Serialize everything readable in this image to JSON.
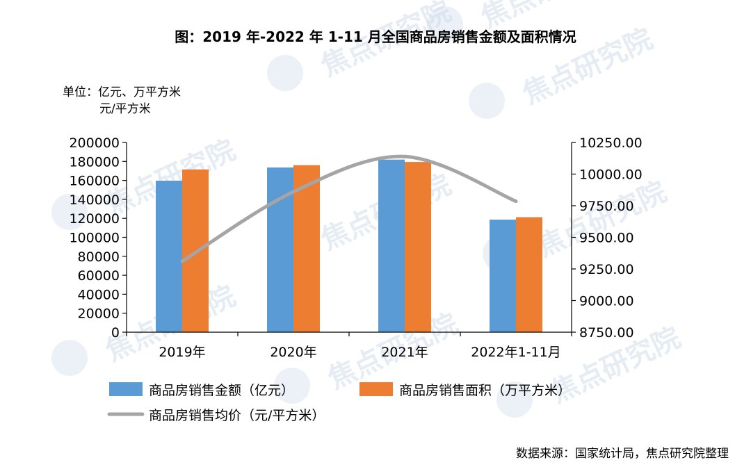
{
  "chart_data": {
    "type": "bar+line",
    "title": "图：2019 年-2022 年 1-11 月全国商品房销售金额及面积情况",
    "unit_lines": [
      "单位：亿元、万平方米",
      "元/平方米"
    ],
    "categories": [
      "2019年",
      "2020年",
      "2021年",
      "2022年1-11月"
    ],
    "series": [
      {
        "name": "商品房销售金额（亿元）",
        "type": "bar",
        "axis": "left",
        "color": "#5b9bd5",
        "values": [
          159725,
          173613,
          181930,
          118648
        ]
      },
      {
        "name": "商品房销售面积（万平方米）",
        "type": "bar",
        "axis": "left",
        "color": "#ed7d31",
        "values": [
          171558,
          176086,
          179433,
          121250
        ]
      },
      {
        "name": "商品房销售均价（元/平方米）",
        "type": "line",
        "axis": "right",
        "color": "#a5a5a5",
        "values": [
          9310,
          9860,
          10139,
          9785
        ]
      }
    ],
    "y_left": {
      "min": 0,
      "max": 200000,
      "ticks": [
        "0",
        "20000",
        "40000",
        "60000",
        "80000",
        "100000",
        "120000",
        "140000",
        "160000",
        "180000",
        "200000"
      ]
    },
    "y_right": {
      "min": 8750,
      "max": 10250,
      "ticks": [
        "8750.00",
        "9000.00",
        "9250.00",
        "9500.00",
        "9750.00",
        "10000.00",
        "10250.00"
      ]
    },
    "legend_position": "bottom",
    "grid": false
  },
  "source": "数据来源：国家统计局，焦点研究院整理",
  "watermark": "焦点研究院"
}
